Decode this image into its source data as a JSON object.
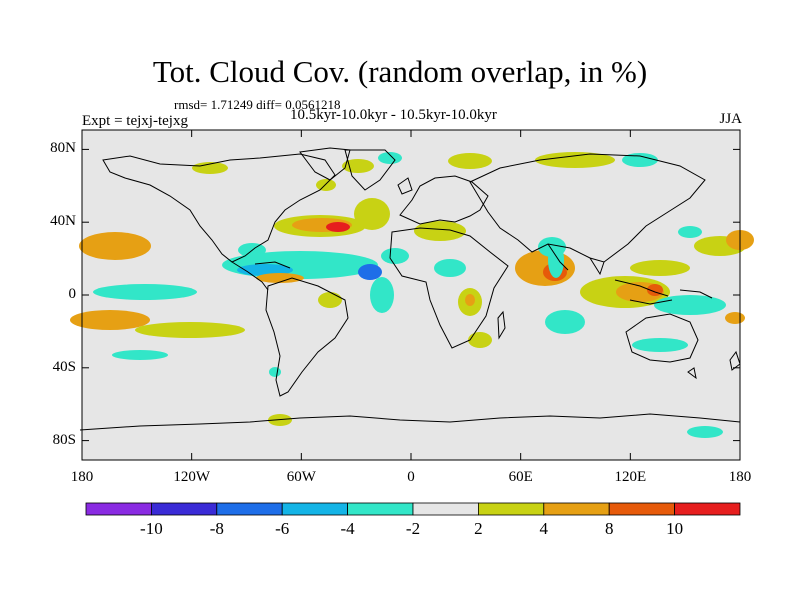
{
  "title": "Tot. Cloud Cov. (random overlap, in %)",
  "stats": "rmsd= 1.71249 diff= 0.0561218",
  "subtitle": "10.5kyr-10.0kyr - 10.5kyr-10.0kyr",
  "experiment": "Expt = tejxj-tejxg",
  "season": "JJA",
  "map": {
    "background_color": "#e6e6e6",
    "y_ticks": [
      {
        "label": "80N",
        "lat": 80
      },
      {
        "label": "40N",
        "lat": 40
      },
      {
        "label": "0",
        "lat": 0
      },
      {
        "label": "40S",
        "lat": -40
      },
      {
        "label": "80S",
        "lat": -80
      }
    ],
    "x_ticks": [
      {
        "label": "180",
        "lon": -180
      },
      {
        "label": "120W",
        "lon": -120
      },
      {
        "label": "60W",
        "lon": -60
      },
      {
        "label": "0",
        "lon": 0
      },
      {
        "label": "60E",
        "lon": 60
      },
      {
        "label": "120E",
        "lon": 120
      },
      {
        "label": "180",
        "lon": 180
      }
    ]
  },
  "colorbar": {
    "colors": [
      "#8a2be2",
      "#3a2bd6",
      "#1e6ee8",
      "#14b4e6",
      "#32e6c8",
      "#e6e6e6",
      "#c8d214",
      "#e6a014",
      "#e65a0a",
      "#e61e1e"
    ],
    "labels": [
      "-10",
      "-8",
      "-6",
      "-4",
      "-2",
      "2",
      "4",
      "8",
      "10"
    ]
  }
}
